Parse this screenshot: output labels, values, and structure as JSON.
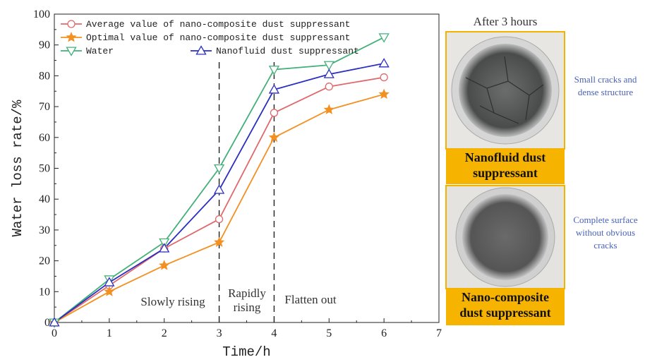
{
  "chart_data": {
    "type": "line",
    "x_label": "Time/h",
    "y_label": "Water loss rate/%",
    "x": [
      0,
      1,
      2,
      3,
      4,
      5,
      6
    ],
    "xlim": [
      0,
      7
    ],
    "xticks": [
      0,
      1,
      2,
      3,
      4,
      5,
      6,
      7
    ],
    "ylim": [
      0,
      100
    ],
    "yticks": [
      0,
      10,
      20,
      30,
      40,
      50,
      60,
      70,
      80,
      90,
      100
    ],
    "dividers": [
      3,
      4
    ],
    "annotations": [
      {
        "lines": [
          "Slowly rising"
        ]
      },
      {
        "lines": [
          "Rapidly",
          "rising"
        ]
      },
      {
        "lines": [
          "Flatten out"
        ]
      }
    ],
    "series": [
      {
        "name": "Average value of nano-composite dust suppressant",
        "color": "#e0686c",
        "marker": "circle",
        "values": [
          0,
          12,
          24,
          33.5,
          68,
          76.5,
          79.5
        ]
      },
      {
        "name": "Optimal value of nano-composite dust suppressant",
        "color": "#f39022",
        "marker": "star",
        "values": [
          0,
          10,
          18.5,
          26,
          60,
          69,
          74
        ]
      },
      {
        "name": "Water",
        "color": "#43b07a",
        "marker": "triangle-down",
        "values": [
          0,
          14,
          26,
          50,
          82,
          83.5,
          92.5
        ]
      },
      {
        "name": "Nanofluid dust suppressant",
        "color": "#2a2fc0",
        "marker": "triangle-up",
        "values": [
          0,
          13,
          24,
          43,
          75.5,
          80.5,
          84
        ]
      }
    ]
  },
  "panel": {
    "title": "After 3 hours",
    "samples": [
      {
        "label": [
          "Nanofluid dust",
          "suppressant"
        ],
        "note": [
          "Small cracks and",
          "dense structure"
        ]
      },
      {
        "label": [
          "Nano-composite",
          "dust suppressant"
        ],
        "note": [
          "Complete surface",
          "without obvious",
          "cracks"
        ]
      }
    ]
  }
}
